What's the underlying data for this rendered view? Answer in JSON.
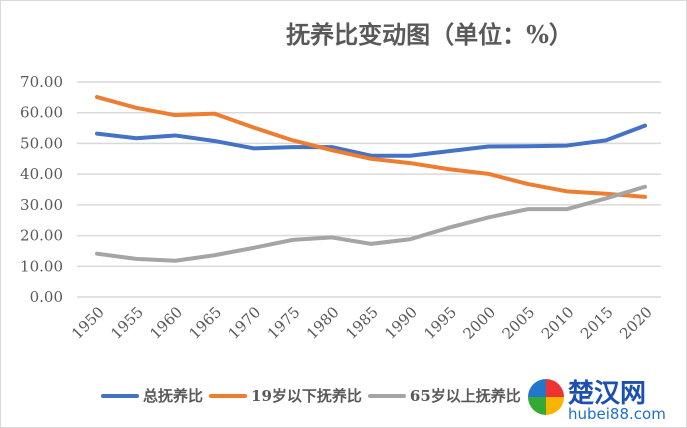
{
  "chart_data": {
    "type": "line",
    "title": "抚养比变动图（单位：%）",
    "x": [
      "1950",
      "1955",
      "1960",
      "1965",
      "1970",
      "1975",
      "1980",
      "1985",
      "1990",
      "1995",
      "2000",
      "2005",
      "2010",
      "2015",
      "2020"
    ],
    "yticks": [
      "0.00",
      "10.00",
      "20.00",
      "30.00",
      "40.00",
      "50.00",
      "60.00",
      "70.00"
    ],
    "ylim": [
      0,
      70
    ],
    "grid": true,
    "legend_position": "bottom",
    "series": [
      {
        "name": "总抚养比",
        "color": "#4472c4",
        "values": [
          53.2,
          51.7,
          52.6,
          50.8,
          48.4,
          48.8,
          48.8,
          46.0,
          46.0,
          47.5,
          49.0,
          49.1,
          49.3,
          51.0,
          55.8
        ]
      },
      {
        "name": "19岁以下抚养比",
        "color": "#ed7d31",
        "values": [
          65.1,
          61.6,
          59.2,
          59.7,
          55.2,
          51.0,
          47.8,
          45.0,
          43.6,
          41.6,
          40.1,
          36.8,
          34.4,
          33.6,
          32.6
        ]
      },
      {
        "name": "65岁以上抚养比",
        "color": "#a5a5a5",
        "values": [
          14.1,
          12.4,
          11.8,
          13.6,
          16.0,
          18.6,
          19.4,
          17.3,
          18.8,
          22.6,
          25.9,
          28.6,
          28.6,
          32.1,
          35.9
        ]
      }
    ]
  },
  "watermark": {
    "name": "楚汉网",
    "url": "hubei88.com"
  }
}
